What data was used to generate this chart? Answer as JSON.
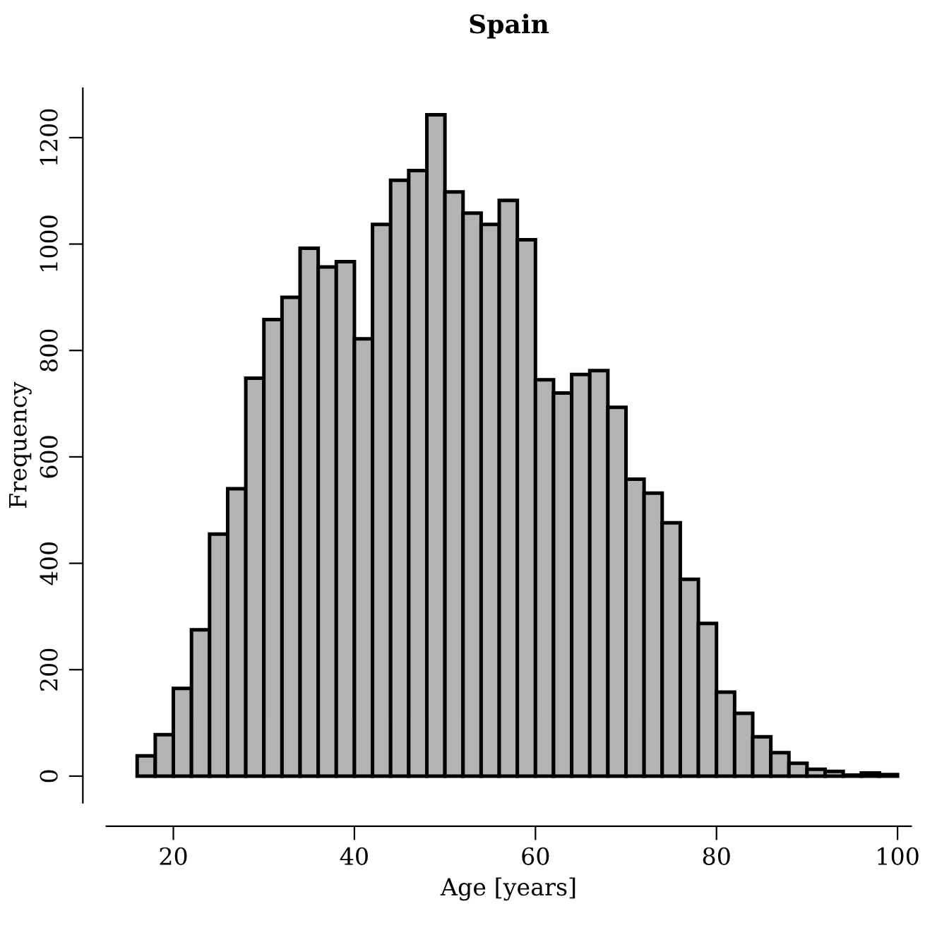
{
  "chart_data": {
    "type": "histogram",
    "title": "Spain",
    "xlabel": "Age [years]",
    "ylabel": "Frequency",
    "color": "#b3b3b3",
    "bins": [
      16,
      18,
      20,
      22,
      24,
      26,
      28,
      30,
      32,
      34,
      36,
      38,
      40,
      42,
      44,
      46,
      48,
      50,
      52,
      54,
      56,
      58,
      60,
      62,
      64,
      66,
      68,
      70,
      72,
      74,
      76,
      78,
      80,
      82,
      84,
      86,
      88,
      90,
      92,
      94,
      96,
      98,
      100
    ],
    "values": [
      38,
      78,
      165,
      275,
      455,
      540,
      748,
      858,
      900,
      992,
      957,
      967,
      822,
      1037,
      1120,
      1138,
      1243,
      1098,
      1058,
      1037,
      1082,
      1008,
      745,
      720,
      755,
      762,
      693,
      558,
      532,
      476,
      370,
      287,
      158,
      118,
      74,
      44,
      24,
      13,
      9,
      2,
      6,
      3
    ],
    "xlim": [
      12.6,
      101.5
    ],
    "ylim": [
      -50,
      1293
    ],
    "xticks": [
      20,
      40,
      60,
      80,
      100
    ],
    "yticks": [
      0,
      200,
      400,
      600,
      800,
      1000,
      1200
    ],
    "grid": false
  }
}
